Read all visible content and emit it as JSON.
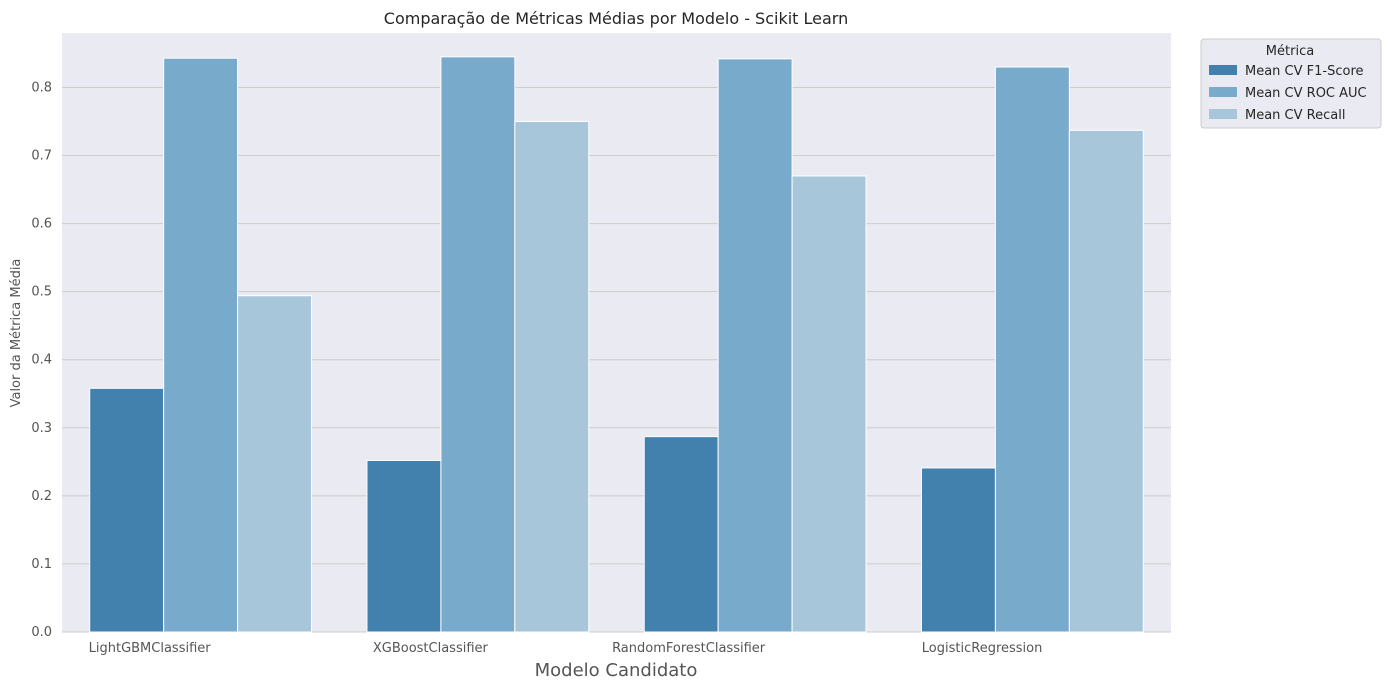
{
  "chart_data": {
    "type": "bar",
    "title": "Comparação de Métricas Médias por Modelo - Scikit Learn",
    "xlabel": "Modelo Candidato",
    "ylabel": "Valor da Métrica Média",
    "categories": [
      "LightGBMClassifier",
      "XGBoostClassifier",
      "RandomForestClassifier",
      "LogisticRegression"
    ],
    "series": [
      {
        "name": "Mean CV F1-Score",
        "color": "#4280ad",
        "values": [
          0.358,
          0.252,
          0.287,
          0.241
        ]
      },
      {
        "name": "Mean CV ROC AUC",
        "color": "#77aacb",
        "values": [
          0.843,
          0.845,
          0.842,
          0.83
        ]
      },
      {
        "name": "Mean CV Recall",
        "color": "#a7c6da",
        "values": [
          0.494,
          0.75,
          0.67,
          0.737
        ]
      }
    ],
    "ylim": [
      0,
      0.88
    ],
    "yticks": [
      "0.0",
      "0.1",
      "0.2",
      "0.3",
      "0.4",
      "0.5",
      "0.6",
      "0.7",
      "0.8"
    ],
    "legend": {
      "title": "Métrica",
      "placement": "outside-top-right"
    },
    "grid": true,
    "background": "#eaeaf2"
  }
}
